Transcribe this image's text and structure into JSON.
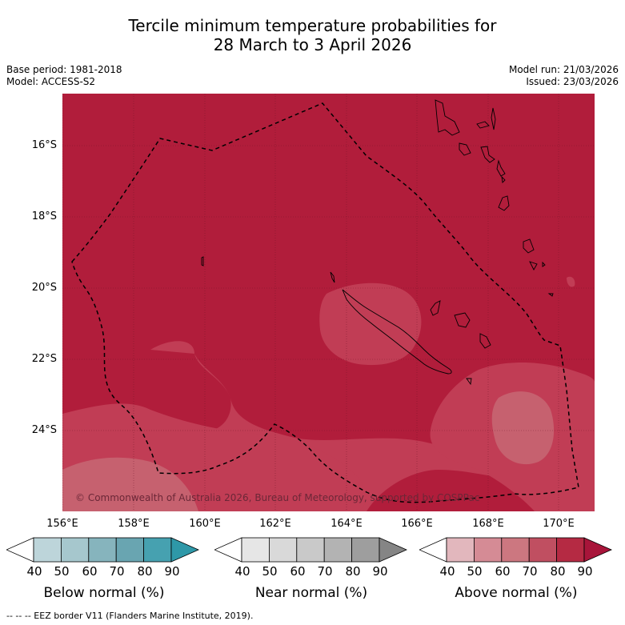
{
  "title_line1": "Tercile minimum temperature probabilities for",
  "title_line2": "28 March to 3 April 2026",
  "base_period": "Base period: 1981-2018",
  "model": "Model: ACCESS-S2",
  "model_run": "Model run: 21/03/2026",
  "issued": "Issued: 23/03/2026",
  "lat_labels": [
    "16°S",
    "18°S",
    "20°S",
    "22°S",
    "24°S"
  ],
  "lon_labels": [
    "156°E",
    "158°E",
    "160°E",
    "162°E",
    "164°E",
    "166°E",
    "168°E",
    "170°E"
  ],
  "copyright": "© Commonwealth of Australia 2026, Bureau of Meteorology, supported by COSPPac",
  "colorbars": [
    {
      "title": "Below normal (%)",
      "ticks": [
        "40",
        "50",
        "60",
        "70",
        "80",
        "90"
      ],
      "colors": [
        "#ffffff",
        "#bdd5da",
        "#a6c7cd",
        "#86b4bd",
        "#69a5b1",
        "#46a1b0",
        "#2e98a8"
      ]
    },
    {
      "title": "Near normal (%)",
      "ticks": [
        "40",
        "50",
        "60",
        "70",
        "80",
        "90"
      ],
      "colors": [
        "#ffffff",
        "#e6e6e6",
        "#d9d9d9",
        "#c9c9c9",
        "#b3b3b3",
        "#9e9e9e",
        "#858585"
      ]
    },
    {
      "title": "Above normal (%)",
      "ticks": [
        "40",
        "50",
        "60",
        "70",
        "80",
        "90"
      ],
      "colors": [
        "#ffffff",
        "#e2b7bd",
        "#d58b95",
        "#cc7780",
        "#c04f61",
        "#b52a43",
        "#a8153a"
      ]
    }
  ],
  "footnote": "--  --  -- EEZ border V11 (Flanders Marine Institute, 2019).",
  "map_colors": {
    "above80": "#b11d3b",
    "above70": "#c13d55",
    "above60": "#c6616f"
  }
}
